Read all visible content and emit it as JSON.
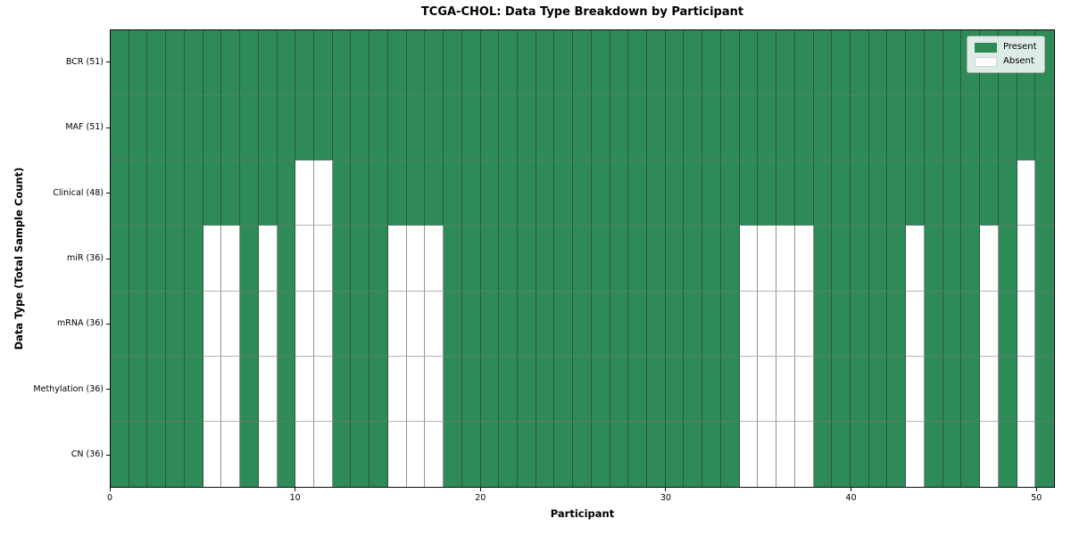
{
  "figure": {
    "title": "TCGA-CHOL: Data Type Breakdown by Participant",
    "xlabel": "Participant",
    "ylabel": "Data Type (Total Sample Count)"
  },
  "legend": {
    "items": [
      {
        "label": "Present",
        "color": "#2E8B57"
      },
      {
        "label": "Absent",
        "color": "#FFFFFF"
      }
    ]
  },
  "chart_data": {
    "type": "heatmap",
    "title": "TCGA-CHOL: Data Type Breakdown by Participant",
    "xlabel": "Participant",
    "ylabel": "Data Type (Total Sample Count)",
    "grid_on": true,
    "legend_position": "upper right",
    "n_participants": 51,
    "x_axis": {
      "min": 0,
      "max": 51,
      "ticks": [
        0,
        10,
        20,
        30,
        40,
        50
      ]
    },
    "colors": {
      "present": "#2E8B57",
      "absent": "#FFFFFF"
    },
    "legend": [
      {
        "label": "Present",
        "color": "#2E8B57"
      },
      {
        "label": "Absent",
        "color": "#FFFFFF"
      }
    ],
    "rows": [
      {
        "label": "BCR (51)",
        "data_type": "BCR",
        "total_samples": 51,
        "absent_participants": []
      },
      {
        "label": "MAF (51)",
        "data_type": "MAF",
        "total_samples": 51,
        "absent_participants": []
      },
      {
        "label": "Clinical (48)",
        "data_type": "Clinical",
        "total_samples": 48,
        "absent_participants": [
          10,
          11,
          49
        ]
      },
      {
        "label": "miR (36)",
        "data_type": "miR",
        "total_samples": 36,
        "absent_participants": [
          5,
          6,
          8,
          10,
          11,
          15,
          16,
          17,
          34,
          35,
          36,
          37,
          43,
          47,
          49
        ]
      },
      {
        "label": "mRNA (36)",
        "data_type": "mRNA",
        "total_samples": 36,
        "absent_participants": [
          5,
          6,
          8,
          10,
          11,
          15,
          16,
          17,
          34,
          35,
          36,
          37,
          43,
          47,
          49
        ]
      },
      {
        "label": "Methylation (36)",
        "data_type": "Methylation",
        "total_samples": 36,
        "absent_participants": [
          5,
          6,
          8,
          10,
          11,
          15,
          16,
          17,
          34,
          35,
          36,
          37,
          43,
          47,
          49
        ]
      },
      {
        "label": "CN (36)",
        "data_type": "CN",
        "total_samples": 36,
        "absent_participants": [
          5,
          6,
          8,
          10,
          11,
          15,
          16,
          17,
          34,
          35,
          36,
          37,
          43,
          47,
          49
        ]
      }
    ]
  }
}
